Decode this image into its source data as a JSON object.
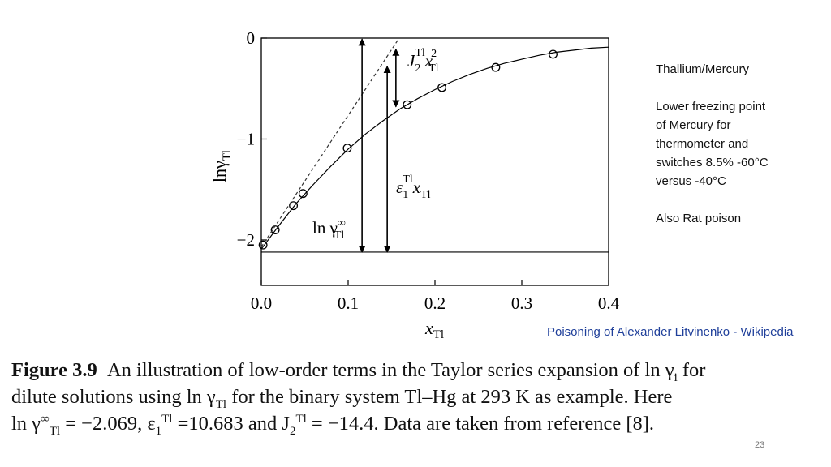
{
  "chart_data": {
    "type": "line",
    "title": "",
    "xlabel": "x",
    "xlabel_sub": "Tl",
    "ylabel": "lnγ",
    "ylabel_sub": "Tl",
    "xlim": [
      0.0,
      0.4
    ],
    "ylim": [
      -2.45,
      0.0
    ],
    "x_ticks": [
      0.0,
      0.1,
      0.2,
      0.3,
      0.4
    ],
    "x_tick_labels": [
      "0.0",
      "0.1",
      "0.2",
      "0.3",
      "0.4"
    ],
    "y_ticks": [
      0,
      -1,
      -2
    ],
    "y_tick_labels": [
      "0",
      "−1",
      "−2"
    ],
    "grid": false,
    "series": [
      {
        "style": "circles",
        "x": [
          0.002,
          0.016,
          0.037,
          0.048,
          0.099,
          0.168,
          0.208,
          0.27,
          0.336
        ],
        "y": [
          -2.05,
          -1.9,
          -1.66,
          -1.54,
          -1.09,
          -0.66,
          -0.49,
          -0.29,
          -0.16
        ]
      },
      {
        "style": "solid-curve",
        "x": [
          0.0,
          0.02,
          0.04,
          0.06,
          0.08,
          0.1,
          0.12,
          0.14,
          0.16,
          0.18,
          0.2,
          0.22,
          0.24,
          0.26,
          0.28,
          0.3,
          0.32,
          0.34,
          0.36,
          0.38,
          0.4
        ],
        "y": [
          -2.09,
          -1.86,
          -1.64,
          -1.45,
          -1.27,
          -1.1,
          -0.95,
          -0.82,
          -0.7,
          -0.6,
          -0.51,
          -0.43,
          -0.36,
          -0.3,
          -0.25,
          -0.21,
          -0.17,
          -0.14,
          -0.12,
          -0.1,
          -0.09
        ]
      },
      {
        "style": "dashed-line",
        "x": [
          0.0,
          0.158
        ],
        "y": [
          -2.069,
          -0.01
        ]
      },
      {
        "style": "baseline",
        "x": [
          0.0,
          0.4
        ],
        "y": [
          -2.12,
          -2.12
        ]
      }
    ],
    "annotations": [
      {
        "base": "ln γ",
        "sup": "∞",
        "sub": "Tl",
        "arrow_x": 0.116,
        "from": -2.12,
        "to": -0.01
      },
      {
        "base": "ε",
        "sub1": "1",
        "sup1": "Tl",
        "tail": "x",
        "sub2": "Tl",
        "arrow_x": 0.145,
        "from": -2.12,
        "to": -0.28
      },
      {
        "base": "J",
        "sub1": "2",
        "sup1": "Tl",
        "tail": "x",
        "sup2": "2",
        "sub2": "Tl",
        "arrow_x": 0.155,
        "from": -0.11,
        "to": -0.68
      }
    ]
  },
  "notes": {
    "title": "Thallium/Mercury",
    "lines": [
      "Lower freezing point",
      "of Mercury for",
      "thermometer and",
      "switches 8.5% -60°C",
      "versus -40°C"
    ],
    "extra": "Also Rat poison"
  },
  "source_link": "Poisoning of Alexander Litvinenko - Wikipedia",
  "caption": {
    "label": "Figure 3.9",
    "line1": "An illustration of low-order terms in the Taylor series expansion of ln γ",
    "line1_sub": "i",
    "line1_end": " for",
    "line2a": "dilute solutions using ln γ",
    "line2_sub": "Tl",
    "line2b": " for the binary system Tl–Hg at 293 K as example. Here",
    "line3a": "ln γ",
    "line3_sup": "∞",
    "line3_sub": "Tl",
    "line3b": " = −2.069, ε",
    "line3_sub2": "1",
    "line3_sup2": "Tl",
    "line3c": " =10.683 and J",
    "line3_sub3": "2",
    "line3_sup3": "Tl",
    "line3d": " = −14.4. Data are taken from reference [8]."
  },
  "page_number": "23"
}
